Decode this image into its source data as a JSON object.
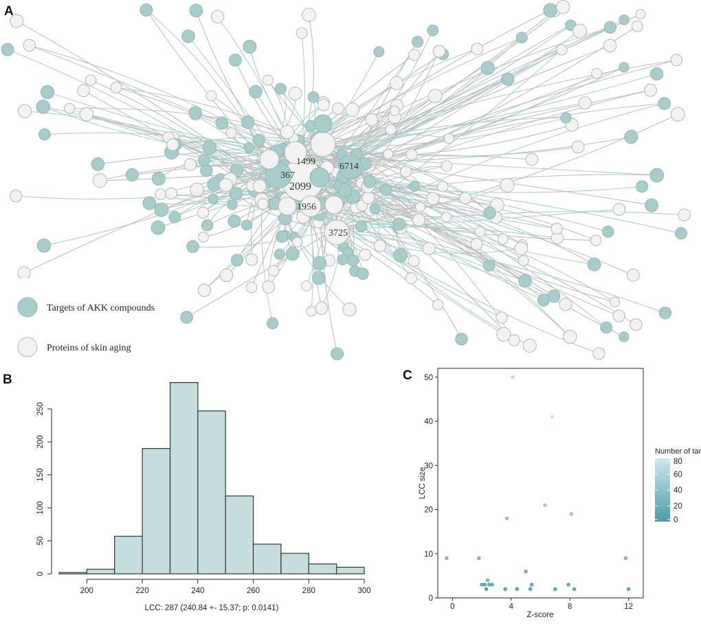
{
  "panels": {
    "a": {
      "letter": "A"
    },
    "b": {
      "letter": "B"
    },
    "c": {
      "letter": "C"
    }
  },
  "colors": {
    "target": "#a9cbc9",
    "target_stroke": "#8fb8b6",
    "protein": "#f2f2f2",
    "protein_stroke": "#b4b4b4",
    "edge_grey": "#bdbdbd",
    "edge_teal": "#a9d0ce",
    "bar": "#c5dedd",
    "bar_stroke": "#333333"
  },
  "network": {
    "hub_labels": [
      "1499",
      "6714",
      "367",
      "2099",
      "1956",
      "3725"
    ],
    "legend": {
      "target_label": "Targets of AKK compounds",
      "protein_label": "Proteins of skin aging"
    }
  },
  "chart_data": [
    {
      "type": "bar",
      "panel": "B",
      "title": "",
      "xlabel": "LCC: 287 (240.84 +- 15.37; p: 0.0141)",
      "ylabel": "",
      "bins": [
        [
          190,
          200
        ],
        [
          200,
          210
        ],
        [
          210,
          220
        ],
        [
          220,
          230
        ],
        [
          230,
          240
        ],
        [
          240,
          250
        ],
        [
          250,
          260
        ],
        [
          260,
          270
        ],
        [
          270,
          280
        ],
        [
          280,
          290
        ],
        [
          290,
          300
        ]
      ],
      "values": [
        2,
        7,
        57,
        190,
        290,
        247,
        118,
        45,
        31,
        15,
        10
      ],
      "xlim": [
        190,
        300
      ],
      "ylim": [
        0,
        300
      ],
      "xticks": [
        "200",
        "220",
        "240",
        "260",
        "280",
        "300"
      ],
      "yticks": [
        "0",
        "50",
        "100",
        "150",
        "200",
        "250"
      ]
    },
    {
      "type": "scatter",
      "panel": "C",
      "title": "",
      "xlabel": "Z-score",
      "ylabel": "LCC size",
      "xlim": [
        -1,
        13
      ],
      "ylim": [
        0,
        52
      ],
      "xticks": [
        "0",
        "4",
        "8",
        "12"
      ],
      "yticks": [
        "0",
        "10",
        "20",
        "30",
        "40",
        "50"
      ],
      "legend_title": "Number of targets",
      "legend_ticks": [
        "0",
        "20",
        "40",
        "60",
        "80"
      ],
      "color_range": [
        0,
        80
      ],
      "points": [
        {
          "x": -0.4,
          "y": 9,
          "c": 30
        },
        {
          "x": 1.8,
          "y": 9,
          "c": 30
        },
        {
          "x": 2.0,
          "y": 3,
          "c": 15
        },
        {
          "x": 2.2,
          "y": 3,
          "c": 12
        },
        {
          "x": 2.3,
          "y": 2,
          "c": 10
        },
        {
          "x": 2.4,
          "y": 4,
          "c": 28
        },
        {
          "x": 2.5,
          "y": 3,
          "c": 18
        },
        {
          "x": 2.7,
          "y": 3,
          "c": 14
        },
        {
          "x": 3.6,
          "y": 2,
          "c": 12
        },
        {
          "x": 3.7,
          "y": 18,
          "c": 45
        },
        {
          "x": 4.1,
          "y": 50,
          "c": 72
        },
        {
          "x": 4.4,
          "y": 2,
          "c": 10
        },
        {
          "x": 5.0,
          "y": 6,
          "c": 20
        },
        {
          "x": 5.3,
          "y": 2,
          "c": 12
        },
        {
          "x": 5.4,
          "y": 3,
          "c": 15
        },
        {
          "x": 6.3,
          "y": 21,
          "c": 55
        },
        {
          "x": 6.8,
          "y": 41,
          "c": 78
        },
        {
          "x": 7.0,
          "y": 2,
          "c": 12
        },
        {
          "x": 7.9,
          "y": 3,
          "c": 15
        },
        {
          "x": 8.1,
          "y": 19,
          "c": 50
        },
        {
          "x": 8.3,
          "y": 2,
          "c": 10
        },
        {
          "x": 11.8,
          "y": 9,
          "c": 30
        },
        {
          "x": 12.0,
          "y": 2,
          "c": 12
        }
      ]
    }
  ]
}
